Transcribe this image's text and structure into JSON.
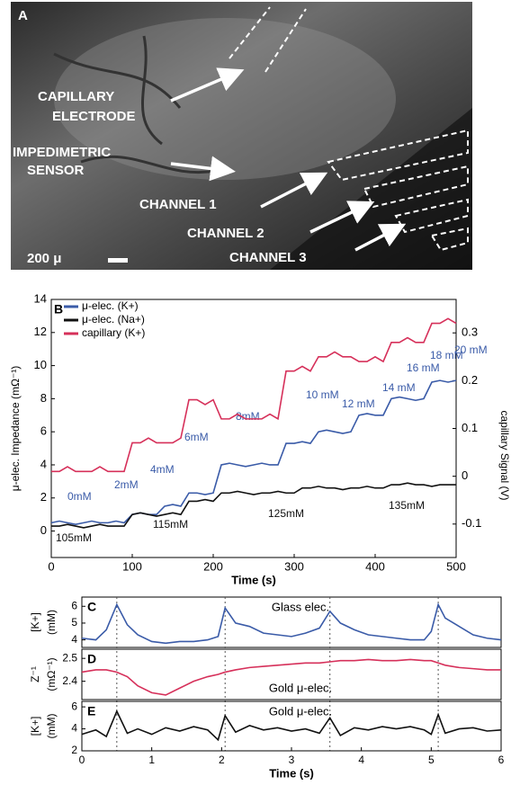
{
  "panel_a": {
    "label": "A",
    "callouts": [
      {
        "lines": [
          "CAPILLARY",
          "ELECTRODE"
        ]
      },
      {
        "lines": [
          "IMPEDIMETRIC",
          "SENSOR"
        ]
      },
      {
        "lines": [
          "CHANNEL 1"
        ]
      },
      {
        "lines": [
          "CHANNEL 2"
        ]
      },
      {
        "lines": [
          "CHANNEL 3"
        ]
      }
    ],
    "scale_bar": "200 μ"
  },
  "chart_data": [
    {
      "type": "line",
      "label": "B",
      "xlabel": "Time (s)",
      "ylabel": "μ-elec. Impedance (mΩ⁻¹)",
      "y2label": "capillary Signal (V)",
      "xlim": [
        0,
        500
      ],
      "xticks": [
        0,
        100,
        200,
        300,
        400,
        500
      ],
      "ylim": [
        -1.6,
        14
      ],
      "yticks": [
        0,
        2,
        4,
        6,
        8,
        10,
        12,
        14
      ],
      "y2lim": [
        -0.17,
        0.37
      ],
      "y2ticks": [
        -0.1,
        0,
        0.1,
        0.2,
        0.3
      ],
      "legend": "top-left",
      "x": [
        0,
        10,
        20,
        30,
        40,
        50,
        60,
        70,
        80,
        90,
        100,
        110,
        120,
        130,
        140,
        150,
        160,
        170,
        180,
        190,
        200,
        210,
        220,
        230,
        240,
        250,
        260,
        270,
        280,
        290,
        300,
        310,
        320,
        330,
        340,
        350,
        360,
        370,
        380,
        390,
        400,
        410,
        420,
        430,
        440,
        450,
        460,
        470,
        480,
        490,
        500
      ],
      "series": [
        {
          "name": "μ-elec. (K+)",
          "color": "#3a5ba8",
          "values": [
            0.5,
            0.6,
            0.5,
            0.4,
            0.5,
            0.6,
            0.5,
            0.5,
            0.6,
            0.5,
            1.0,
            1.1,
            1.0,
            1.0,
            1.5,
            1.6,
            1.5,
            2.3,
            2.3,
            2.2,
            2.3,
            4.0,
            4.1,
            4.0,
            3.9,
            4.0,
            4.1,
            4.0,
            4.0,
            5.3,
            5.3,
            5.4,
            5.3,
            6.0,
            6.1,
            6.0,
            5.9,
            6.0,
            7.0,
            7.1,
            7.0,
            7.0,
            8.0,
            8.1,
            8.0,
            7.9,
            8.0,
            9.0,
            9.1,
            9.0,
            9.1
          ],
          "labels": [
            "0mM",
            "2mM",
            "4mM",
            "6mM",
            "8mM",
            "10 mM",
            "12 mM",
            "14 mM",
            "16 mM",
            "18 mM",
            "20 mM"
          ]
        },
        {
          "name": "μ-elec. (Na+)",
          "color": "#111111",
          "values": [
            0.3,
            0.3,
            0.4,
            0.3,
            0.2,
            0.3,
            0.4,
            0.3,
            0.3,
            0.3,
            1.0,
            1.1,
            1.0,
            0.9,
            1.0,
            1.1,
            1.0,
            1.8,
            1.8,
            1.9,
            1.8,
            2.3,
            2.3,
            2.4,
            2.3,
            2.2,
            2.3,
            2.3,
            2.4,
            2.3,
            2.3,
            2.6,
            2.6,
            2.7,
            2.6,
            2.6,
            2.5,
            2.6,
            2.6,
            2.7,
            2.6,
            2.6,
            2.8,
            2.8,
            2.9,
            2.8,
            2.8,
            2.7,
            2.8,
            2.8,
            2.8
          ],
          "labels": [
            "105mM",
            "115mM",
            "125mM",
            "135mM"
          ]
        },
        {
          "name": "capillary (K+)",
          "color": "#d6305a",
          "axis": "y2",
          "values": [
            0.01,
            0.01,
            0.02,
            0.01,
            0.01,
            0.01,
            0.02,
            0.01,
            0.01,
            0.01,
            0.07,
            0.07,
            0.08,
            0.07,
            0.07,
            0.07,
            0.08,
            0.16,
            0.16,
            0.15,
            0.16,
            0.12,
            0.12,
            0.13,
            0.12,
            0.12,
            0.12,
            0.13,
            0.12,
            0.22,
            0.22,
            0.23,
            0.22,
            0.25,
            0.25,
            0.26,
            0.25,
            0.25,
            0.24,
            0.24,
            0.25,
            0.24,
            0.28,
            0.28,
            0.29,
            0.28,
            0.28,
            0.32,
            0.32,
            0.33,
            0.32
          ]
        }
      ]
    },
    {
      "type": "line",
      "label": "C",
      "annotation": "Glass elec.",
      "ylabel": [
        "[K+]",
        "(mM)"
      ],
      "xlim": [
        0,
        6
      ],
      "ylim": [
        3.55,
        6.55
      ],
      "yticks": [
        4,
        5,
        6
      ],
      "vlines": [
        0.5,
        2.05,
        3.55,
        5.1
      ],
      "x": [
        0,
        0.2,
        0.35,
        0.5,
        0.65,
        0.8,
        1.0,
        1.2,
        1.4,
        1.6,
        1.8,
        1.95,
        2.05,
        2.2,
        2.4,
        2.6,
        2.8,
        3.0,
        3.2,
        3.4,
        3.55,
        3.7,
        3.9,
        4.1,
        4.3,
        4.5,
        4.7,
        4.9,
        5.0,
        5.1,
        5.2,
        5.4,
        5.6,
        5.8,
        6.0
      ],
      "series": [
        {
          "color": "#3a5ba8",
          "values": [
            4.1,
            4.0,
            4.6,
            6.1,
            4.9,
            4.3,
            3.9,
            3.8,
            3.9,
            3.9,
            4.0,
            4.2,
            5.9,
            5.0,
            4.8,
            4.4,
            4.3,
            4.2,
            4.4,
            4.7,
            5.7,
            5.0,
            4.6,
            4.3,
            4.2,
            4.1,
            4.0,
            4.0,
            4.5,
            6.1,
            5.3,
            4.8,
            4.3,
            4.1,
            4.0
          ]
        }
      ]
    },
    {
      "type": "line",
      "label": "D",
      "annotation": "Gold μ-elec.",
      "ylabel": [
        "Z⁻¹",
        "(mΩ⁻¹)"
      ],
      "xlim": [
        0,
        6
      ],
      "ylim": [
        2.32,
        2.54
      ],
      "yticks": [
        2.4,
        2.5
      ],
      "x": [
        0,
        0.2,
        0.35,
        0.5,
        0.65,
        0.8,
        1.0,
        1.2,
        1.4,
        1.6,
        1.8,
        1.95,
        2.05,
        2.2,
        2.4,
        2.6,
        2.8,
        3.0,
        3.2,
        3.4,
        3.55,
        3.7,
        3.9,
        4.1,
        4.3,
        4.5,
        4.7,
        4.9,
        5.0,
        5.1,
        5.2,
        5.4,
        5.6,
        5.8,
        6.0
      ],
      "series": [
        {
          "color": "#d6305a",
          "values": [
            2.44,
            2.45,
            2.45,
            2.44,
            2.42,
            2.38,
            2.35,
            2.34,
            2.37,
            2.4,
            2.42,
            2.43,
            2.44,
            2.45,
            2.46,
            2.465,
            2.47,
            2.475,
            2.48,
            2.48,
            2.485,
            2.49,
            2.49,
            2.495,
            2.49,
            2.49,
            2.495,
            2.49,
            2.49,
            2.48,
            2.47,
            2.46,
            2.455,
            2.45,
            2.45
          ]
        }
      ]
    },
    {
      "type": "line",
      "label": "E",
      "annotation": "Gold μ-elec.",
      "ylabel": [
        "[K+]",
        "(mM)"
      ],
      "xlabel": "Time (s)",
      "xlim": [
        0,
        6
      ],
      "xticks": [
        0,
        1,
        2,
        3,
        4,
        5,
        6
      ],
      "ylim": [
        2,
        6.5
      ],
      "yticks": [
        2,
        4,
        6
      ],
      "x": [
        0,
        0.2,
        0.35,
        0.5,
        0.65,
        0.8,
        1.0,
        1.2,
        1.4,
        1.6,
        1.8,
        1.95,
        2.05,
        2.2,
        2.4,
        2.6,
        2.8,
        3.0,
        3.2,
        3.4,
        3.55,
        3.7,
        3.9,
        4.1,
        4.3,
        4.5,
        4.7,
        4.9,
        5.0,
        5.1,
        5.2,
        5.4,
        5.6,
        5.8,
        6.0
      ],
      "series": [
        {
          "color": "#111111",
          "values": [
            3.5,
            3.9,
            3.3,
            5.6,
            3.6,
            4.0,
            3.5,
            4.1,
            3.8,
            4.2,
            3.9,
            3.0,
            5.2,
            3.7,
            4.3,
            3.9,
            4.1,
            3.8,
            4.0,
            3.6,
            5.0,
            3.4,
            4.1,
            3.9,
            4.2,
            4.0,
            4.2,
            3.9,
            3.5,
            5.3,
            3.6,
            4.0,
            4.1,
            3.8,
            3.9
          ]
        }
      ]
    }
  ]
}
